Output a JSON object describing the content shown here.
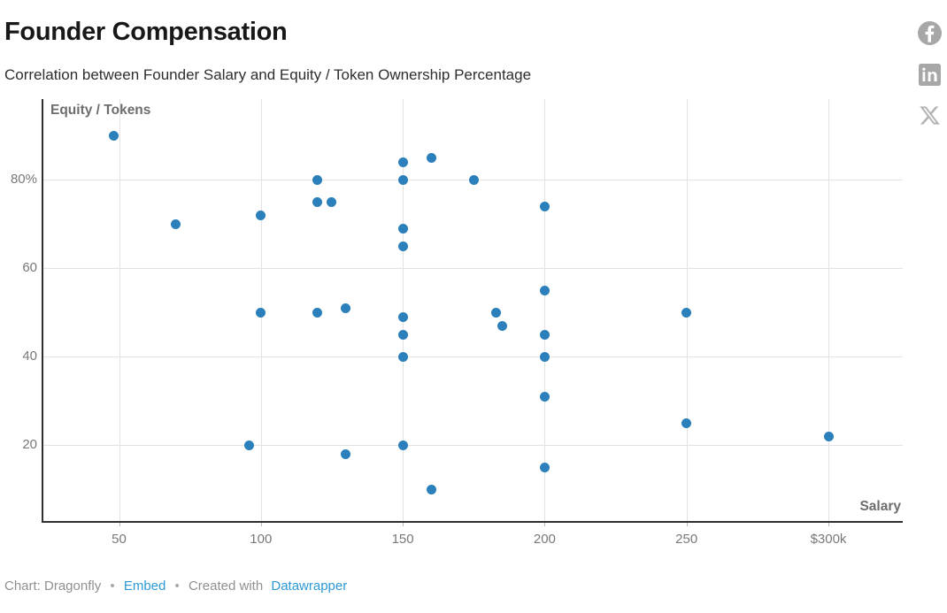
{
  "header": {
    "title": "Founder Compensation",
    "subtitle": "Correlation between Founder Salary and Equity / Token Ownership Percentage"
  },
  "share_toolbar": {
    "icons": [
      "facebook",
      "linkedin",
      "x"
    ],
    "icon_color": "#a7a7a7",
    "x_icon_color": "#b3b3b3"
  },
  "chart_data": {
    "type": "scatter",
    "title": "Founder Compensation",
    "subtitle": "Correlation between Founder Salary and Equity / Token Ownership Percentage",
    "xlabel": "Salary",
    "ylabel": "Equity / Tokens",
    "x_unit": "$k",
    "y_unit": "%",
    "grid": true,
    "legend": false,
    "xlim": [
      22,
      326
    ],
    "ylim": [
      3,
      98
    ],
    "x_ticks": [
      {
        "v": 50,
        "label": "50"
      },
      {
        "v": 100,
        "label": "100"
      },
      {
        "v": 150,
        "label": "150"
      },
      {
        "v": 200,
        "label": "200"
      },
      {
        "v": 250,
        "label": "250"
      },
      {
        "v": 300,
        "label": "$300k"
      }
    ],
    "y_ticks": [
      {
        "v": 80,
        "label": "80%"
      },
      {
        "v": 60,
        "label": "60"
      },
      {
        "v": 40,
        "label": "40"
      },
      {
        "v": 20,
        "label": "20"
      }
    ],
    "point_color": "#2b7fba",
    "points": [
      [
        48,
        90
      ],
      [
        70,
        70
      ],
      [
        96,
        20
      ],
      [
        100,
        50
      ],
      [
        100,
        72
      ],
      [
        120,
        50
      ],
      [
        120,
        75
      ],
      [
        120,
        80
      ],
      [
        125,
        75
      ],
      [
        130,
        18
      ],
      [
        130,
        51
      ],
      [
        150,
        20
      ],
      [
        150,
        40
      ],
      [
        150,
        45
      ],
      [
        150,
        49
      ],
      [
        150,
        65
      ],
      [
        150,
        69
      ],
      [
        150,
        80
      ],
      [
        150,
        84
      ],
      [
        160,
        10
      ],
      [
        160,
        85
      ],
      [
        175,
        80
      ],
      [
        183,
        50
      ],
      [
        185,
        47
      ],
      [
        200,
        15
      ],
      [
        200,
        31
      ],
      [
        200,
        40
      ],
      [
        200,
        45
      ],
      [
        200,
        55
      ],
      [
        200,
        74
      ],
      [
        250,
        25
      ],
      [
        250,
        50
      ],
      [
        300,
        22
      ]
    ]
  },
  "footer": {
    "credit": "Chart: Dragonfly",
    "separator": "•",
    "embed_label": "Embed",
    "separator2": "•",
    "created_with": "Created with",
    "datawrapper_label": "Datawrapper"
  }
}
